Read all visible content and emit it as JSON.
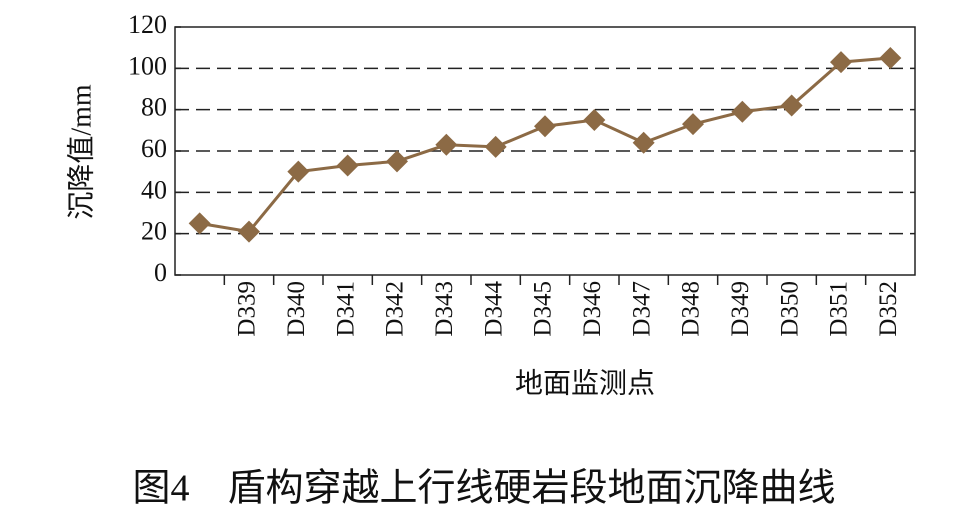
{
  "chart_data": {
    "type": "line",
    "categories": [
      null,
      "D339",
      "D340",
      "D341",
      "D342",
      "D343",
      "D344",
      "D345",
      "D346",
      "D347",
      "D348",
      "D349",
      "D350",
      "D351",
      "D352"
    ],
    "series": [
      {
        "color": "#8c6a45",
        "values": [
          25,
          21,
          50,
          53,
          55,
          63,
          62,
          72,
          75,
          64,
          73,
          79,
          82,
          103,
          105
        ]
      }
    ],
    "ylim": [
      0,
      120
    ],
    "yticks": [
      0,
      20,
      40,
      60,
      80,
      100,
      120
    ],
    "grid": true,
    "x_label": "地面监测点",
    "y_label": "沉降值/mm"
  },
  "caption": "图4　盾构穿越上行线硬岩段地面沉降曲线"
}
